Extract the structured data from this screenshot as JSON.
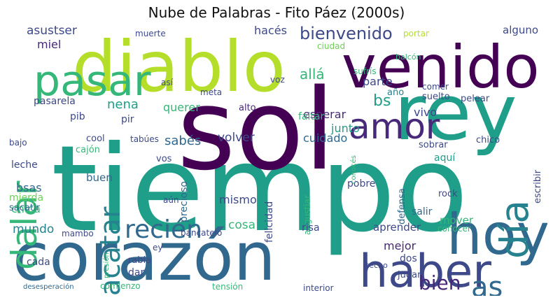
{
  "title": "Nube de Palabras - Fito Páez (2000s)",
  "palette": [
    "#440154",
    "#482878",
    "#3e4989",
    "#31688e",
    "#26828e",
    "#1f9e89",
    "#35b779",
    "#6ece58",
    "#b5de2b",
    "#fde725"
  ],
  "words": [
    {
      "text": "tiempo",
      "color": "#1f9e89"
    },
    {
      "text": "sol",
      "color": "#440154"
    },
    {
      "text": "rey",
      "color": "#1f9e89"
    },
    {
      "text": "corazón",
      "color": "#31688e"
    },
    {
      "text": "diablo",
      "color": "#b5de2b"
    },
    {
      "text": "venido",
      "color": "#440154"
    },
    {
      "text": "hoy",
      "color": "#31688e"
    },
    {
      "text": "haber",
      "color": "#3e4989"
    },
    {
      "text": "pasar",
      "color": "#35b779"
    },
    {
      "text": "dalar",
      "color": "#35b779"
    },
    {
      "text": "sacatar",
      "color": "#26828e"
    },
    {
      "text": "amor",
      "color": "#482878"
    },
    {
      "text": "día",
      "color": "#26828e"
    },
    {
      "text": "recién",
      "color": "#31688e"
    },
    {
      "text": "as",
      "color": "#31688e"
    },
    {
      "text": "bien",
      "color": "#482878"
    },
    {
      "text": "bienvenido",
      "color": "#3e4989"
    },
    {
      "text": "asustser",
      "color": "#3e4989"
    },
    {
      "text": "hacés",
      "color": "#3e4989"
    },
    {
      "text": "alguno",
      "color": "#3e4989"
    },
    {
      "text": "miel",
      "color": "#482878"
    },
    {
      "text": "nena",
      "color": "#1f9e89"
    },
    {
      "text": "allá",
      "color": "#35b779"
    },
    {
      "text": "parte",
      "color": "#3e4989"
    },
    {
      "text": "bs",
      "color": "#1f9e89"
    },
    {
      "text": "querer",
      "color": "#35b779"
    },
    {
      "text": "esperar",
      "color": "#482878"
    },
    {
      "text": "junto",
      "color": "#1f9e89"
    },
    {
      "text": "vivo",
      "color": "#3e4989"
    },
    {
      "text": "sabés",
      "color": "#31688e"
    },
    {
      "text": "volver",
      "color": "#3e4989"
    },
    {
      "text": "cuidado",
      "color": "#31688e"
    },
    {
      "text": "pasarela",
      "color": "#3e4989"
    },
    {
      "text": "pib",
      "color": "#3e4989"
    },
    {
      "text": "pir",
      "color": "#3e4989"
    },
    {
      "text": "meta",
      "color": "#3e4989"
    },
    {
      "text": "alto",
      "color": "#482878"
    },
    {
      "text": "faltar",
      "color": "#35b779"
    },
    {
      "text": "año",
      "color": "#26828e"
    },
    {
      "text": "suelto",
      "color": "#3e4989"
    },
    {
      "text": "comer",
      "color": "#3e4989"
    },
    {
      "text": "pelear",
      "color": "#3e4989"
    },
    {
      "text": "chico",
      "color": "#3e4989"
    },
    {
      "text": "sobrar",
      "color": "#3e4989"
    },
    {
      "text": "leche",
      "color": "#3e4989"
    },
    {
      "text": "bsas",
      "color": "#31688e"
    },
    {
      "text": "chica",
      "color": "#35b779"
    },
    {
      "text": "mundo",
      "color": "#26828e"
    },
    {
      "text": "mierda",
      "color": "#6ece58"
    },
    {
      "text": "sacatir",
      "color": "#31688e"
    },
    {
      "text": "buen",
      "color": "#31688e"
    },
    {
      "text": "precioso",
      "color": "#31688e"
    },
    {
      "text": "mismo",
      "color": "#3e4989"
    },
    {
      "text": "felicidad",
      "color": "#3e4989"
    },
    {
      "text": "angustiar",
      "color": "#35b779"
    },
    {
      "text": "pobre",
      "color": "#3e4989"
    },
    {
      "text": "aquí",
      "color": "#1f9e89"
    },
    {
      "text": "defensa",
      "color": "#31688e"
    },
    {
      "text": "rock",
      "color": "#3e4989"
    },
    {
      "text": "salir",
      "color": "#31688e"
    },
    {
      "text": "escribir",
      "color": "#3e4989"
    },
    {
      "text": "mover",
      "color": "#35b779"
    },
    {
      "text": "conocer",
      "color": "#35b779"
    },
    {
      "text": "aprender",
      "color": "#3e4989"
    },
    {
      "text": "mejor",
      "color": "#482878"
    },
    {
      "text": "dos",
      "color": "#3e4989"
    },
    {
      "text": "jugar",
      "color": "#3e4989"
    },
    {
      "text": "cosa",
      "color": "#35b779"
    },
    {
      "text": "risa",
      "color": "#3e4989"
    },
    {
      "text": "cada",
      "color": "#3e4989"
    },
    {
      "text": "mambo",
      "color": "#3e4989"
    },
    {
      "text": "ey",
      "color": "#3e4989"
    },
    {
      "text": "rabia",
      "color": "#3e4989"
    },
    {
      "text": "dar",
      "color": "#3e4989"
    },
    {
      "text": "comienzo",
      "color": "#35b779"
    },
    {
      "text": "tensión",
      "color": "#35b779"
    },
    {
      "text": "interior",
      "color": "#3e4989"
    },
    {
      "text": "tecno",
      "color": "#3e4989"
    },
    {
      "text": "desesperación",
      "color": "#31688e"
    },
    {
      "text": "presión",
      "color": "#35b779"
    },
    {
      "text": "cool",
      "color": "#3e4989"
    },
    {
      "text": "cajón",
      "color": "#35b779"
    },
    {
      "text": "bajo",
      "color": "#3e4989"
    },
    {
      "text": "tabúes",
      "color": "#3e4989"
    },
    {
      "text": "vos",
      "color": "#3e4989"
    },
    {
      "text": "aún",
      "color": "#3e4989"
    },
    {
      "text": "bancatelo",
      "color": "#3e4989"
    },
    {
      "text": "muerte",
      "color": "#3e4989"
    },
    {
      "text": "ciudad",
      "color": "#6ece58"
    },
    {
      "text": "voz",
      "color": "#3e4989"
    },
    {
      "text": "sufrís",
      "color": "#35b779"
    },
    {
      "text": "balcón",
      "color": "#35b779"
    },
    {
      "text": "portar",
      "color": "#b5de2b"
    },
    {
      "text": "así",
      "color": "#3e4989"
    },
    {
      "text": "conocés",
      "color": "#35b779"
    }
  ]
}
